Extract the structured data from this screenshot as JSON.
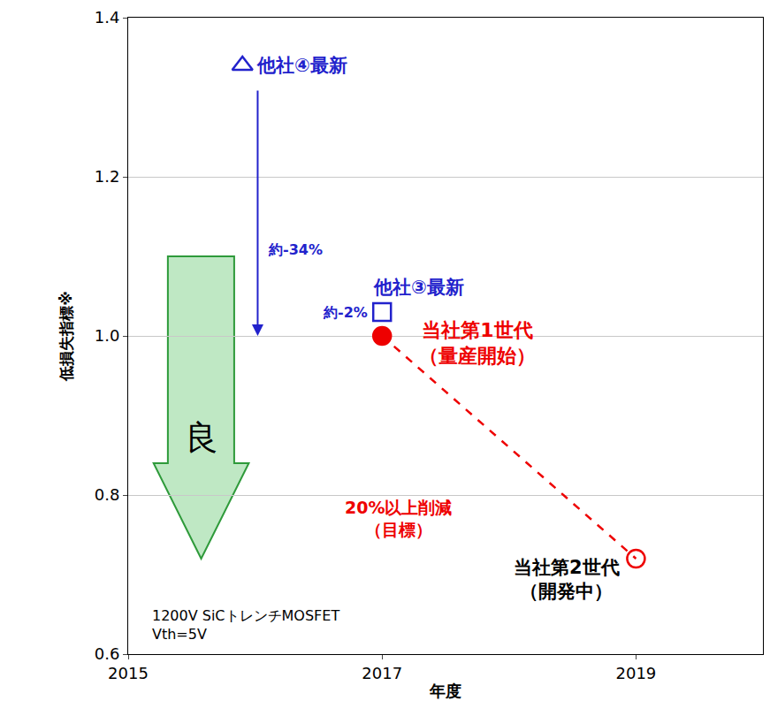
{
  "chart_data": {
    "type": "scatter",
    "xlabel": "年度",
    "ylabel": "低損失指標※",
    "xlim": [
      2015,
      2020
    ],
    "xticks": [
      2015,
      2017,
      2019
    ],
    "ylim": [
      0.6,
      1.4
    ],
    "yticks": [
      0.6,
      0.8,
      {
        "value": 1,
        "label": "1.0"
      },
      1.2,
      1.4
    ],
    "grid": true,
    "series": [
      {
        "name": "他社④最新",
        "type": "scatter",
        "marker": "triangle-up-open",
        "color": "#2222cc",
        "x": [
          2015.9
        ],
        "values": [
          1.34
        ]
      },
      {
        "name": "他社③最新",
        "type": "scatter",
        "marker": "square-open",
        "color": "#2222cc",
        "x": [
          2017
        ],
        "values": [
          1.03
        ]
      },
      {
        "name": "当社第1世代",
        "note": "（量産開始）",
        "type": "scatter",
        "marker": "circle",
        "color": "#ee0000",
        "x": [
          2017
        ],
        "values": [
          1.0
        ]
      },
      {
        "name": "当社第2世代",
        "note": "（開発中）",
        "type": "scatter",
        "marker": "circle-open",
        "color": "#ee0000",
        "label_color": "#000000",
        "x": [
          2019
        ],
        "values": [
          0.72
        ]
      },
      {
        "name": "20%以上削減",
        "note": "（目標）",
        "type": "line",
        "line_style": "dashed",
        "color": "#ee0000",
        "x": [
          2017,
          2019
        ],
        "values": [
          1.0,
          0.72
        ]
      }
    ],
    "arrows": [
      {
        "text": "約-34%",
        "color": "#2222cc",
        "x": 2016.02,
        "from": 1.31,
        "to": 1.0
      }
    ],
    "point_notes": [
      {
        "text": "約-2%",
        "series": "他社③最新",
        "color": "#2222cc"
      }
    ],
    "better_label": "良",
    "conditions": "1200V SiCトレンチMOSFET Vth=5V"
  }
}
